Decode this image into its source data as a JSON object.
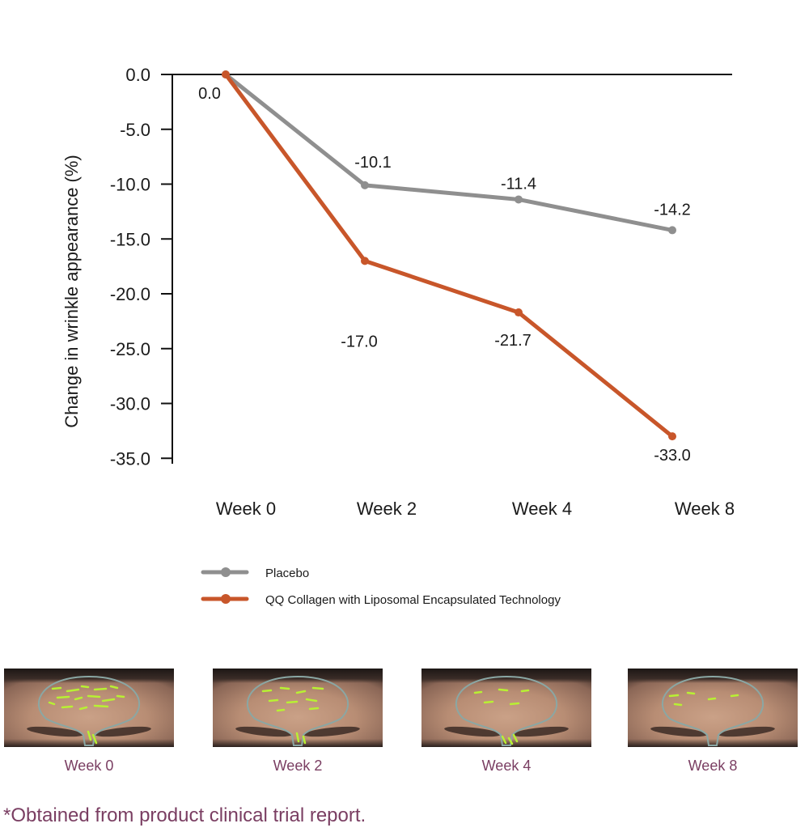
{
  "chart_data": {
    "type": "line",
    "categories": [
      "Week 0",
      "Week 2",
      "Week 4",
      "Week 8"
    ],
    "ylabel": "Change in wrinkle appearance (%)",
    "ylim": [
      -35,
      0
    ],
    "yticks": [
      "0.0",
      "-5.0",
      "-10.0",
      "-15.0",
      "-20.0",
      "-25.0",
      "-30.0",
      "-35.0"
    ],
    "grid": false,
    "legend_position": "bottom",
    "series": [
      {
        "name": "Placebo",
        "color": "#8f8f8f",
        "values": [
          0.0,
          -10.1,
          -11.4,
          -14.2
        ],
        "labels": [
          "0.0",
          "-10.1",
          "-11.4",
          "-14.2"
        ]
      },
      {
        "name": "QQ Collagen with Liposomal Encapsulated Technology",
        "color": "#c8562a",
        "values": [
          0.0,
          -17.0,
          -21.7,
          -33.0
        ],
        "labels": [
          "",
          "-17.0",
          "-21.7",
          "-33.0"
        ]
      }
    ]
  },
  "photos": {
    "labels": [
      "Week 0",
      "Week 2",
      "Week 4",
      "Week 8"
    ],
    "label_color": "#7a3e62"
  },
  "footnote": "*Obtained from product clinical trial report."
}
